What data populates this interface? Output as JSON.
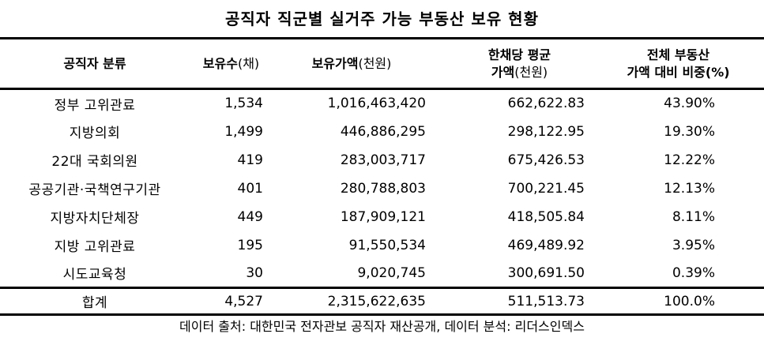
{
  "title": "공직자 직군별 실거주 가능 부동산 보유 현황",
  "headers": {
    "category": "공직자 분류",
    "count_label": "보유수",
    "count_unit": "(채)",
    "value_label": "보유가액",
    "value_unit": "(천원)",
    "avg_line1": "한채당 평균",
    "avg_line2_label": "가액",
    "avg_line2_unit": "(천원)",
    "pct_line1": "전체 부동산",
    "pct_line2": "가액 대비 비중(%)"
  },
  "rows": [
    {
      "name": "정부 고위관료",
      "count": "1,534",
      "value": "1,016,463,420",
      "avg": "662,622.83",
      "pct": "43.90%"
    },
    {
      "name": "지방의회",
      "count": "1,499",
      "value": "446,886,295",
      "avg": "298,122.95",
      "pct": "19.30%"
    },
    {
      "name": "22대 국회의원",
      "count": "419",
      "value": "283,003,717",
      "avg": "675,426.53",
      "pct": "12.22%"
    },
    {
      "name": "공공기관·국책연구기관",
      "count": "401",
      "value": "280,788,803",
      "avg": "700,221.45",
      "pct": "12.13%"
    },
    {
      "name": "지방자치단체장",
      "count": "449",
      "value": "187,909,121",
      "avg": "418,505.84",
      "pct": "8.11%"
    },
    {
      "name": "지방 고위관료",
      "count": "195",
      "value": "91,550,534",
      "avg": "469,489.92",
      "pct": "3.95%"
    },
    {
      "name": "시도교육청",
      "count": "30",
      "value": "9,020,745",
      "avg": "300,691.50",
      "pct": "0.39%"
    }
  ],
  "total": {
    "name": "합계",
    "count": "4,527",
    "value": "2,315,622,635",
    "avg": "511,513.73",
    "pct": "100.0%"
  },
  "source": "데이터 출처: 대한민국 전자관보 공직자 재산공개, 데이터 분석: 리더스인덱스"
}
